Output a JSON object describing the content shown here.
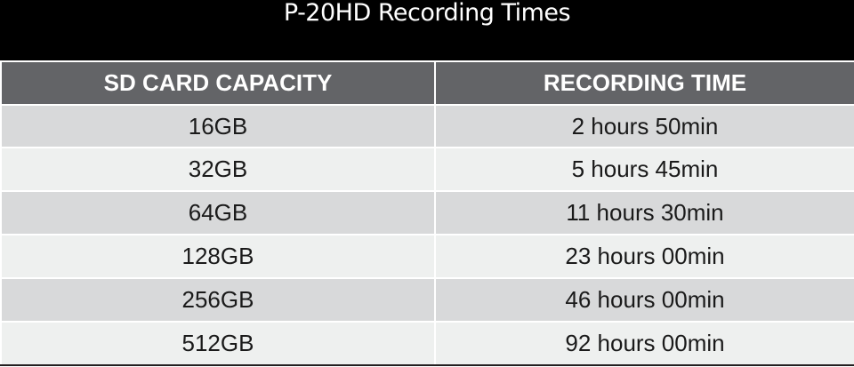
{
  "title": "P-20HD Recording Times",
  "table": {
    "headers": [
      "SD CARD CAPACITY",
      "RECORDING TIME"
    ],
    "rows": [
      [
        "16GB",
        "2 hours 50min"
      ],
      [
        "32GB",
        "5 hours 45min"
      ],
      [
        "64GB",
        "11 hours 30min"
      ],
      [
        "128GB",
        "23 hours 00min"
      ],
      [
        "256GB",
        "46 hours 00min"
      ],
      [
        "512GB",
        "92 hours 00min"
      ]
    ]
  },
  "colors": {
    "title_bar": "#000000",
    "header_bg": "#636467",
    "row_dark": "#d8d9da",
    "row_light": "#eef0ef"
  }
}
